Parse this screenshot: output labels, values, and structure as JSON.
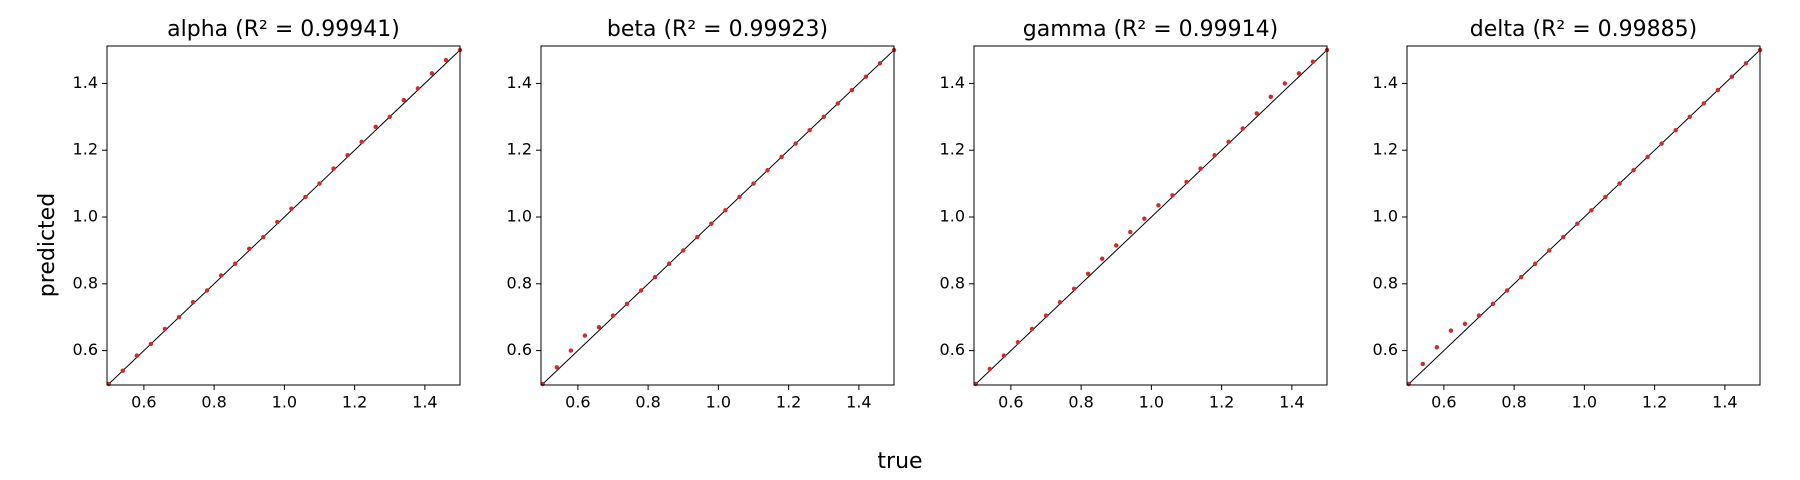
{
  "xlabel": "true",
  "ylabel": "predicted",
  "chart_data": [
    {
      "type": "scatter",
      "title": "alpha (R² = 0.99941)",
      "color": "#d62728",
      "x": [
        0.5,
        0.54,
        0.58,
        0.62,
        0.66,
        0.7,
        0.74,
        0.78,
        0.82,
        0.86,
        0.9,
        0.94,
        0.98,
        1.02,
        1.06,
        1.1,
        1.14,
        1.18,
        1.22,
        1.26,
        1.3,
        1.34,
        1.38,
        1.42,
        1.46,
        1.5
      ],
      "y": [
        0.5,
        0.54,
        0.585,
        0.62,
        0.665,
        0.7,
        0.745,
        0.78,
        0.825,
        0.86,
        0.905,
        0.94,
        0.985,
        1.025,
        1.06,
        1.1,
        1.145,
        1.185,
        1.225,
        1.27,
        1.3,
        1.35,
        1.385,
        1.43,
        1.47,
        1.5
      ],
      "xlim": [
        0.495,
        1.5
      ],
      "ylim": [
        0.497,
        1.512
      ],
      "xticks": [
        0.6,
        0.8,
        {
          "value": 1,
          "label": "1.0"
        },
        1.2,
        1.4
      ],
      "yticks": [
        0.6,
        0.8,
        {
          "value": 1,
          "label": "1.0"
        },
        1.2,
        1.4
      ]
    },
    {
      "type": "scatter",
      "title": "beta (R² = 0.99923)",
      "color": "#d62728",
      "x": [
        0.5,
        0.54,
        0.58,
        0.62,
        0.66,
        0.7,
        0.74,
        0.78,
        0.82,
        0.86,
        0.9,
        0.94,
        0.98,
        1.02,
        1.06,
        1.1,
        1.14,
        1.18,
        1.22,
        1.26,
        1.3,
        1.34,
        1.38,
        1.42,
        1.46,
        1.5
      ],
      "y": [
        0.5,
        0.55,
        0.6,
        0.645,
        0.67,
        0.705,
        0.74,
        0.78,
        0.82,
        0.86,
        0.9,
        0.94,
        0.98,
        1.02,
        1.06,
        1.1,
        1.14,
        1.18,
        1.22,
        1.26,
        1.3,
        1.34,
        1.38,
        1.42,
        1.46,
        1.5
      ],
      "xlim": [
        0.495,
        1.5
      ],
      "ylim": [
        0.497,
        1.512
      ],
      "xticks": [
        0.6,
        0.8,
        {
          "value": 1,
          "label": "1.0"
        },
        1.2,
        1.4
      ],
      "yticks": [
        0.6,
        0.8,
        {
          "value": 1,
          "label": "1.0"
        },
        1.2,
        1.4
      ]
    },
    {
      "type": "scatter",
      "title": "gamma (R² = 0.99914)",
      "color": "#d62728",
      "x": [
        0.5,
        0.54,
        0.58,
        0.62,
        0.66,
        0.7,
        0.74,
        0.78,
        0.82,
        0.86,
        0.9,
        0.94,
        0.98,
        1.02,
        1.06,
        1.1,
        1.14,
        1.18,
        1.22,
        1.26,
        1.3,
        1.34,
        1.38,
        1.42,
        1.46,
        1.5
      ],
      "y": [
        0.5,
        0.545,
        0.585,
        0.625,
        0.665,
        0.705,
        0.745,
        0.785,
        0.83,
        0.875,
        0.915,
        0.955,
        0.995,
        1.035,
        1.065,
        1.105,
        1.145,
        1.185,
        1.225,
        1.265,
        1.31,
        1.36,
        1.4,
        1.43,
        1.465,
        1.5
      ],
      "xlim": [
        0.495,
        1.5
      ],
      "ylim": [
        0.497,
        1.512
      ],
      "xticks": [
        0.6,
        0.8,
        {
          "value": 1,
          "label": "1.0"
        },
        1.2,
        1.4
      ],
      "yticks": [
        0.6,
        0.8,
        {
          "value": 1,
          "label": "1.0"
        },
        1.2,
        1.4
      ]
    },
    {
      "type": "scatter",
      "title": "delta (R² = 0.99885)",
      "color": "#d62728",
      "x": [
        0.5,
        0.54,
        0.58,
        0.62,
        0.66,
        0.7,
        0.74,
        0.78,
        0.82,
        0.86,
        0.9,
        0.94,
        0.98,
        1.02,
        1.06,
        1.1,
        1.14,
        1.18,
        1.22,
        1.26,
        1.3,
        1.34,
        1.38,
        1.42,
        1.46,
        1.5
      ],
      "y": [
        0.5,
        0.56,
        0.61,
        0.66,
        0.68,
        0.705,
        0.74,
        0.78,
        0.82,
        0.86,
        0.9,
        0.94,
        0.98,
        1.02,
        1.06,
        1.1,
        1.14,
        1.18,
        1.22,
        1.26,
        1.3,
        1.34,
        1.38,
        1.42,
        1.46,
        1.5
      ],
      "xlim": [
        0.495,
        1.5
      ],
      "ylim": [
        0.497,
        1.512
      ],
      "xticks": [
        0.6,
        0.8,
        {
          "value": 1,
          "label": "1.0"
        },
        1.2,
        1.4
      ],
      "yticks": [
        0.6,
        0.8,
        {
          "value": 1,
          "label": "1.0"
        },
        1.2,
        1.4
      ]
    }
  ]
}
